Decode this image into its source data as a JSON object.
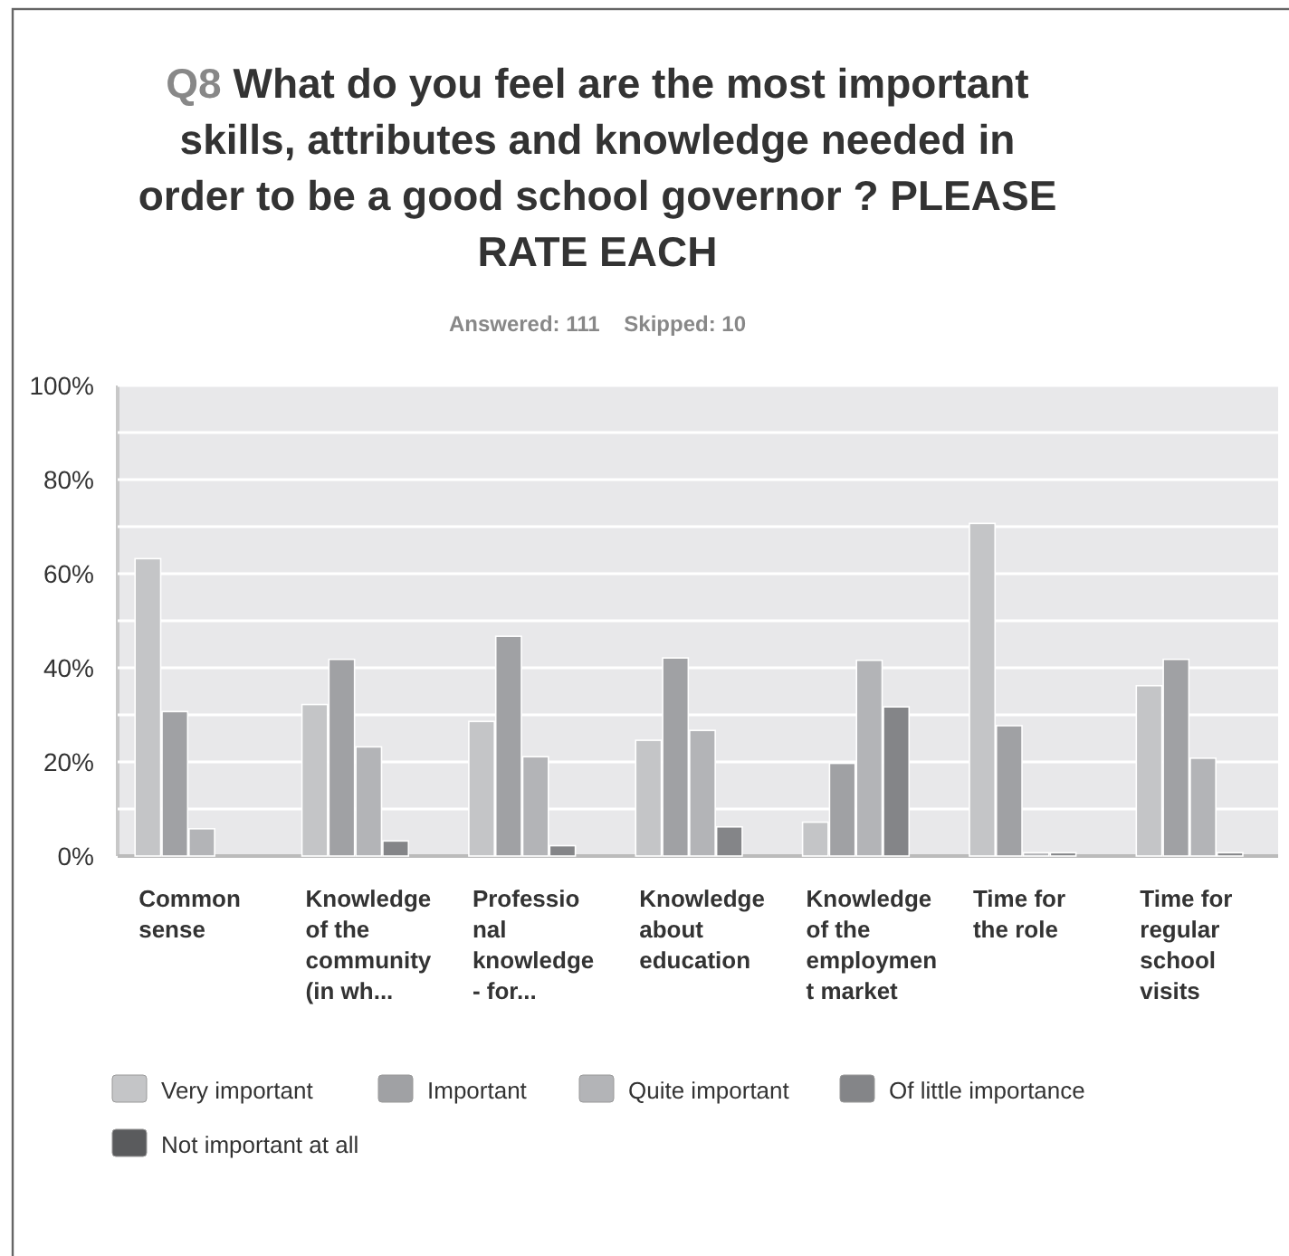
{
  "chart_data": {
    "type": "bar",
    "title": "Q8 What do you feel are the most important skills, attributes and knowledge needed in order to be a good school governor ? PLEASE RATE EACH",
    "subtitle": "Answered: 111    Skipped: 10",
    "categories": [
      "Common sense",
      "Knowledge of the community (in wh...",
      "Professional knowledge - for...",
      "Knowledge about education",
      "Knowledge of the employment market",
      "Time for the role",
      "Time for regular school visits"
    ],
    "series": [
      {
        "name": "Very important",
        "color": "#c4c5c7",
        "values": [
          63.2,
          32.2,
          28.6,
          24.6,
          7.2,
          70.7,
          36.2
        ]
      },
      {
        "name": "Important",
        "color": "#a0a1a4",
        "values": [
          30.7,
          41.8,
          46.7,
          42.1,
          19.7,
          27.7,
          41.8
        ]
      },
      {
        "name": "Quite important",
        "color": "#b3b4b7",
        "values": [
          5.8,
          23.2,
          21.1,
          26.7,
          41.6,
          0.7,
          20.8
        ]
      },
      {
        "name": "Of little importance",
        "color": "#848588",
        "values": [
          0,
          3.2,
          2.2,
          6.2,
          31.7,
          0.7,
          0.7
        ]
      },
      {
        "name": "Not important at all",
        "color": "#5a5b5d",
        "values": [
          0,
          0,
          0,
          0,
          0,
          0,
          0
        ]
      }
    ],
    "ylim": [
      0,
      100
    ],
    "yticks": [
      {
        "value": 0,
        "label": "0%"
      },
      {
        "value": 10,
        "label": null
      },
      {
        "value": 20,
        "label": "20%"
      },
      {
        "value": 30,
        "label": null
      },
      {
        "value": 40,
        "label": "40%"
      },
      {
        "value": 50,
        "label": null
      },
      {
        "value": 60,
        "label": "60%"
      },
      {
        "value": 70,
        "label": null
      },
      {
        "value": 80,
        "label": "80%"
      },
      {
        "value": 90,
        "label": null
      },
      {
        "value": 100,
        "label": "100%"
      }
    ],
    "grid": "y",
    "legend": "bottom"
  }
}
